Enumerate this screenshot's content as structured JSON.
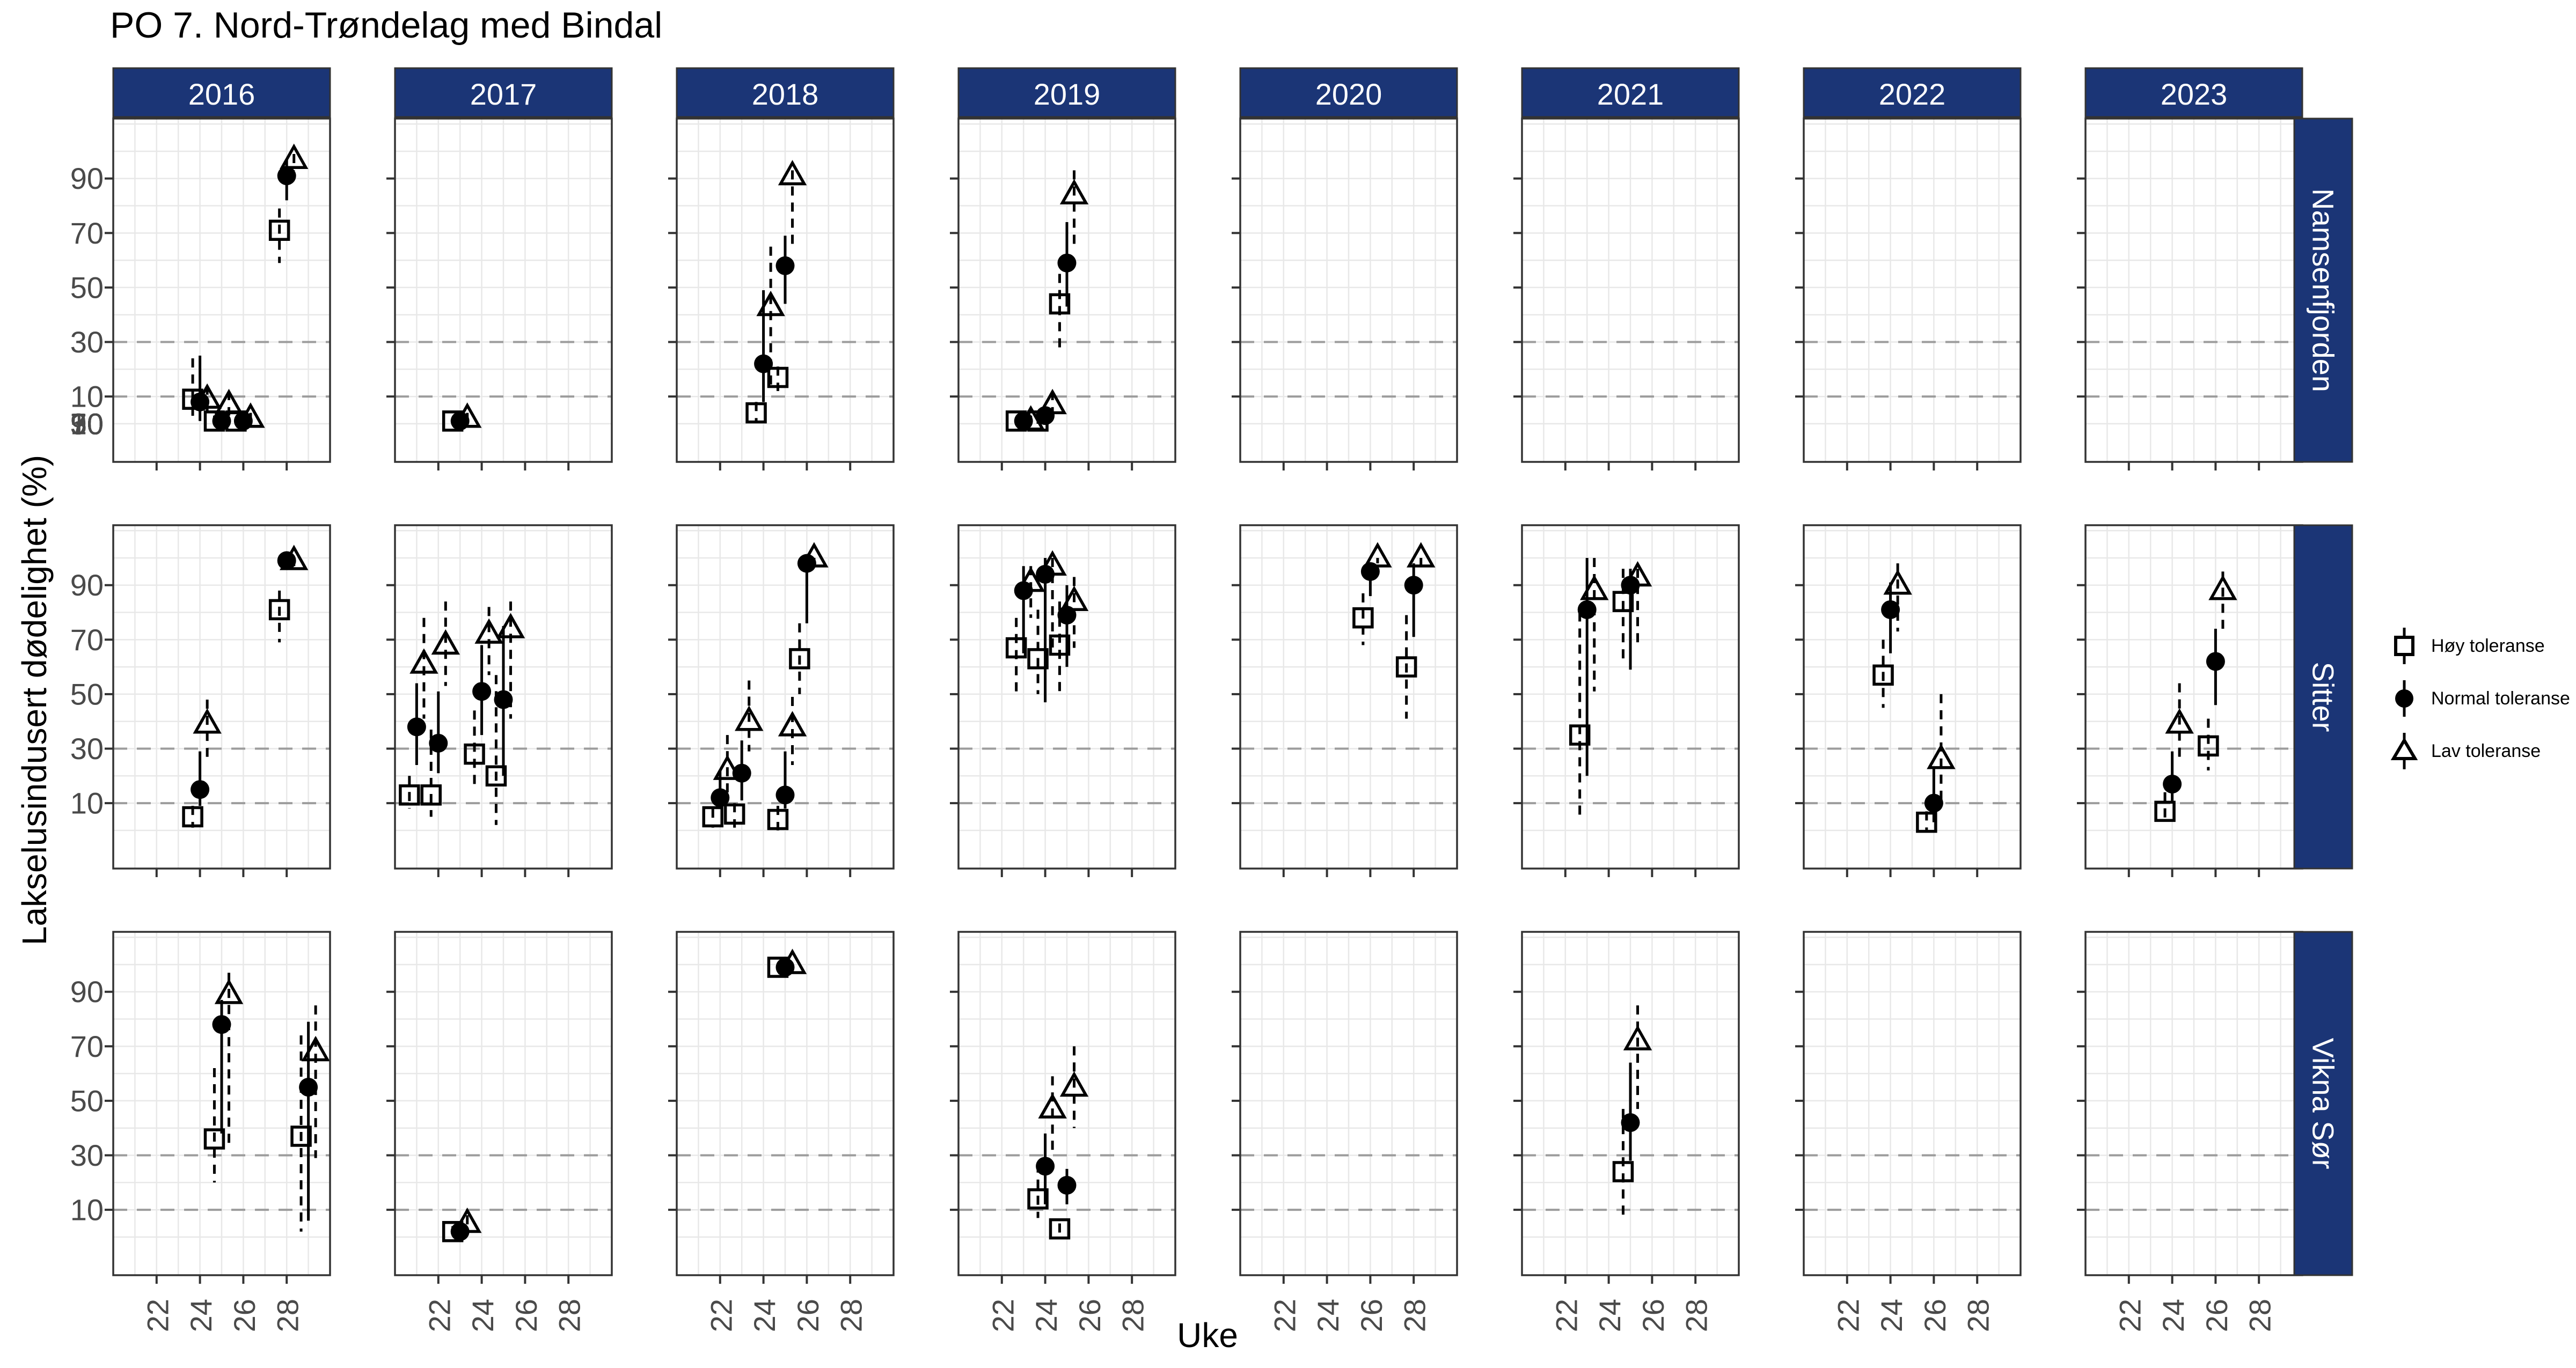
{
  "title": "PO 7. Nord-Trøndelag med Bindal",
  "axes": {
    "x_title": "Uke",
    "y_title": "Lakselusindusert dødelighet (%)",
    "x_ticks": [
      22,
      24,
      26,
      28
    ],
    "y_ticks": [
      10,
      30,
      50,
      70,
      90
    ],
    "dashed_reference_lines": [
      10,
      30
    ],
    "x_range": [
      20,
      30
    ],
    "y_range": [
      -14,
      112
    ],
    "grid": "on"
  },
  "facets": {
    "columns": [
      "2016",
      "2017",
      "2018",
      "2019",
      "2020",
      "2021",
      "2022",
      "2023"
    ],
    "rows": [
      "Namsenfjorden",
      "Sitter",
      "Vikna Sør"
    ]
  },
  "legend": {
    "items": [
      {
        "label": "Høy toleranse",
        "marker": "square-open-icon"
      },
      {
        "label": "Normal toleranse",
        "marker": "circle-filled-icon"
      },
      {
        "label": "Lav toleranse",
        "marker": "triangle-open-icon"
      }
    ]
  },
  "colors": {
    "strip_fill": "#1b3576",
    "strip_text": "#ffffff",
    "panel_border": "#333333",
    "grid_line": "#e8e8e8",
    "dashed_line": "#9c9c9c",
    "axis_text": "#4a4a4a",
    "data_ink": "#000000",
    "background": "#ffffff"
  },
  "chart_data": {
    "type": "scatter",
    "subtype": "pointrange-dodged-facets",
    "series_names": [
      "Høy toleranse",
      "Normal toleranse",
      "Lav toleranse"
    ],
    "dodge_weeks": [
      -0.335,
      0,
      0.335
    ],
    "point_format": "[value_pct, ci_low_pct, ci_high_pct]",
    "panels": [
      {
        "row": 0,
        "col": 0,
        "clusters": [
          {
            "week": 24,
            "hoy": [
              9,
              2,
              24
            ],
            "normal": [
              8,
              1,
              25
            ],
            "lav": [
              9,
              4,
              14
            ]
          },
          {
            "week": 25,
            "hoy": [
              1,
              0,
              3
            ],
            "normal": [
              1,
              0,
              3
            ],
            "lav": [
              7,
              3,
              12
            ]
          },
          {
            "week": 26,
            "hoy": [
              1,
              0,
              2
            ],
            "normal": [
              1,
              0,
              2
            ],
            "lav": [
              2,
              0,
              4
            ]
          },
          {
            "week": 28,
            "hoy": [
              71,
              59,
              79
            ],
            "normal": [
              91,
              82,
              97
            ],
            "lav": [
              97,
              93,
              99
            ]
          }
        ]
      },
      {
        "row": 0,
        "col": 1,
        "clusters": [
          {
            "week": 23,
            "hoy": [
              1,
              0,
              2
            ],
            "normal": [
              1,
              0,
              2
            ],
            "lav": [
              2,
              1,
              4
            ]
          }
        ]
      },
      {
        "row": 0,
        "col": 2,
        "clusters": [
          {
            "week": 24,
            "hoy": [
              4,
              1,
              8
            ],
            "normal": [
              22,
              8,
              49
            ],
            "lav": [
              43,
              12,
              65
            ]
          },
          {
            "week": 25,
            "hoy": [
              17,
              12,
              21
            ],
            "normal": [
              58,
              44,
              69
            ],
            "lav": [
              91,
              65,
              93
            ]
          }
        ]
      },
      {
        "row": 0,
        "col": 3,
        "clusters": [
          {
            "week": 23,
            "hoy": [
              1,
              0,
              2
            ],
            "normal": [
              1,
              0,
              2
            ],
            "lav": [
              1,
              0,
              3
            ]
          },
          {
            "week": 24,
            "hoy": [
              1,
              0,
              3
            ],
            "normal": [
              3,
              1,
              6
            ],
            "lav": [
              7,
              3,
              12
            ]
          },
          {
            "week": 25,
            "hoy": [
              44,
              27,
              55
            ],
            "normal": [
              59,
              43,
              74
            ],
            "lav": [
              84,
              66,
              93
            ]
          }
        ]
      },
      {
        "row": 1,
        "col": 0,
        "clusters": [
          {
            "week": 24,
            "hoy": [
              5,
              1,
              9
            ],
            "normal": [
              15,
              9,
              29
            ],
            "lav": [
              39,
              27,
              48
            ]
          },
          {
            "week": 28,
            "hoy": [
              81,
              69,
              88
            ],
            "normal": [
              99,
              97,
              100
            ],
            "lav": [
              99,
              97,
              100
            ]
          }
        ]
      },
      {
        "row": 1,
        "col": 1,
        "clusters": [
          {
            "week": 21,
            "hoy": [
              13,
              8,
              20
            ],
            "normal": [
              38,
              24,
              54
            ],
            "lav": [
              61,
              41,
              78
            ]
          },
          {
            "week": 22,
            "hoy": [
              13,
              5,
              37
            ],
            "normal": [
              32,
              21,
              51
            ],
            "lav": [
              68,
              53,
              84
            ]
          },
          {
            "week": 24,
            "hoy": [
              28,
              15,
              44
            ],
            "normal": [
              51,
              35,
              68
            ],
            "lav": [
              72,
              57,
              82
            ]
          },
          {
            "week": 25,
            "hoy": [
              20,
              2,
              57
            ],
            "normal": [
              48,
              20,
              75
            ],
            "lav": [
              74,
              41,
              84
            ]
          }
        ]
      },
      {
        "row": 1,
        "col": 2,
        "clusters": [
          {
            "week": 22,
            "hoy": [
              5,
              1,
              8
            ],
            "normal": [
              12,
              8,
              22
            ],
            "lav": [
              22,
              11,
              35
            ]
          },
          {
            "week": 23,
            "hoy": [
              6,
              1,
              10
            ],
            "normal": [
              21,
              11,
              33
            ],
            "lav": [
              40,
              29,
              55
            ]
          },
          {
            "week": 25,
            "hoy": [
              4,
              0,
              9
            ],
            "normal": [
              13,
              8,
              29
            ],
            "lav": [
              38,
              24,
              49
            ]
          },
          {
            "week": 26,
            "hoy": [
              63,
              50,
              76
            ],
            "normal": [
              98,
              76,
              100
            ],
            "lav": [
              100,
              98,
              100
            ]
          }
        ]
      },
      {
        "row": 1,
        "col": 3,
        "clusters": [
          {
            "week": 23,
            "hoy": [
              67,
              51,
              78
            ],
            "normal": [
              88,
              65,
              97
            ],
            "lav": [
              91,
              78,
              97
            ]
          },
          {
            "week": 24,
            "hoy": [
              63,
              50,
              81
            ],
            "normal": [
              94,
              47,
              100
            ],
            "lav": [
              97,
              66,
              100
            ]
          },
          {
            "week": 25,
            "hoy": [
              68,
              51,
              84
            ],
            "normal": [
              79,
              60,
              90
            ],
            "lav": [
              84,
              67,
              93
            ]
          }
        ]
      },
      {
        "row": 1,
        "col": 4,
        "clusters": [
          {
            "week": 26,
            "hoy": [
              78,
              68,
              87
            ],
            "normal": [
              95,
              86,
              98
            ],
            "lav": [
              100,
              98,
              100
            ]
          },
          {
            "week": 28,
            "hoy": [
              60,
              41,
              79
            ],
            "normal": [
              90,
              71,
              98
            ],
            "lav": [
              100,
              97,
              100
            ]
          }
        ]
      },
      {
        "row": 1,
        "col": 5,
        "clusters": [
          {
            "week": 23,
            "hoy": [
              35,
              5,
              80
            ],
            "normal": [
              81,
              20,
              100
            ],
            "lav": [
              88,
              51,
              100
            ]
          },
          {
            "week": 25,
            "hoy": [
              84,
              62,
              96
            ],
            "normal": [
              90,
              59,
              96
            ],
            "lav": [
              93,
              67,
              96
            ]
          }
        ]
      },
      {
        "row": 1,
        "col": 6,
        "clusters": [
          {
            "week": 24,
            "hoy": [
              57,
              45,
              70
            ],
            "normal": [
              81,
              65,
              91
            ],
            "lav": [
              90,
              73,
              98
            ]
          },
          {
            "week": 26,
            "hoy": [
              3,
              0,
              7
            ],
            "normal": [
              10,
              3,
              23
            ],
            "lav": [
              26,
              10,
              50
            ]
          }
        ]
      },
      {
        "row": 1,
        "col": 7,
        "clusters": [
          {
            "week": 24,
            "hoy": [
              7,
              3,
              14
            ],
            "normal": [
              17,
              10,
              29
            ],
            "lav": [
              39,
              27,
              54
            ]
          },
          {
            "week": 26,
            "hoy": [
              31,
              22,
              41
            ],
            "normal": [
              62,
              46,
              74
            ],
            "lav": [
              88,
              74,
              95
            ]
          }
        ]
      },
      {
        "row": 2,
        "col": 0,
        "clusters": [
          {
            "week": 25,
            "hoy": [
              36,
              20,
              62
            ],
            "normal": [
              78,
              38,
              87
            ],
            "lav": [
              89,
              33,
              97
            ]
          },
          {
            "week": 29,
            "hoy": [
              37,
              2,
              74
            ],
            "normal": [
              55,
              6,
              79
            ],
            "lav": [
              68,
              29,
              85
            ]
          }
        ]
      },
      {
        "row": 2,
        "col": 1,
        "clusters": [
          {
            "week": 23,
            "hoy": [
              2,
              1,
              4
            ],
            "normal": [
              2,
              1,
              4
            ],
            "lav": [
              5,
              2,
              8
            ]
          }
        ]
      },
      {
        "row": 2,
        "col": 2,
        "clusters": [
          {
            "week": 25,
            "hoy": [
              99,
              98,
              100
            ],
            "normal": [
              99,
              98,
              100
            ],
            "lav": [
              100,
              99,
              100
            ]
          }
        ]
      },
      {
        "row": 2,
        "col": 3,
        "clusters": [
          {
            "week": 24,
            "hoy": [
              14,
              7,
              27
            ],
            "normal": [
              26,
              12,
              38
            ],
            "lav": [
              47,
              32,
              59
            ]
          },
          {
            "week": 25,
            "hoy": [
              3,
              0,
              5
            ],
            "normal": [
              19,
              12,
              25
            ],
            "lav": [
              55,
              40,
              70
            ]
          }
        ]
      },
      {
        "row": 2,
        "col": 5,
        "clusters": [
          {
            "week": 25,
            "hoy": [
              24,
              7,
              47
            ],
            "normal": [
              42,
              28,
              64
            ],
            "lav": [
              72,
              47,
              85
            ]
          }
        ]
      }
    ]
  }
}
